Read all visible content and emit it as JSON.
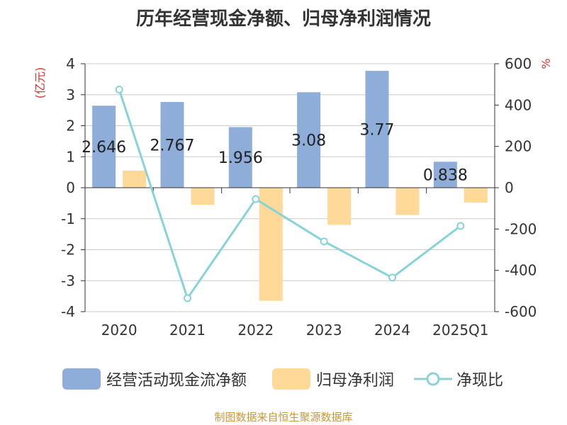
{
  "chart_data": {
    "type": "bar+line",
    "title": "历年经营现金净额、归母净利润情况",
    "categories": [
      "2020",
      "2021",
      "2022",
      "2023",
      "2024",
      "2025Q1"
    ],
    "series": [
      {
        "name": "经营活动现金流净额",
        "axis": "left",
        "type": "bar",
        "color": "#8eadd9",
        "values": [
          2.646,
          2.767,
          1.956,
          3.08,
          3.77,
          0.838
        ],
        "labels": [
          "2.646",
          "2.767",
          "1.956",
          "3.08",
          "3.77",
          "0.838"
        ]
      },
      {
        "name": "归母净利润",
        "axis": "left",
        "type": "bar",
        "color": "#ffd998",
        "values": [
          0.55,
          -0.55,
          -3.65,
          -1.2,
          -0.88,
          -0.48
        ]
      },
      {
        "name": "净现比",
        "axis": "right",
        "type": "line",
        "color": "#88d3d8",
        "values": [
          475,
          -535,
          -55,
          -260,
          -435,
          -185
        ]
      }
    ],
    "left_axis": {
      "label": "(亿元)",
      "min": -4,
      "max": 4,
      "ticks": [
        "-4",
        "-3",
        "-2",
        "-1",
        "0",
        "1",
        "2",
        "3",
        "4"
      ]
    },
    "right_axis": {
      "label": "%",
      "min": -600,
      "max": 600,
      "ticks": [
        "-600",
        "-400",
        "-200",
        "0",
        "200",
        "400",
        "600"
      ]
    }
  },
  "legend": {
    "cash_flow": "经营活动现金流净额",
    "net_profit": "归母净利润",
    "ratio": "净现比"
  },
  "source": "制图数据来自恒生聚源数据库",
  "colors": {
    "cash_flow": "#8eadd9",
    "net_profit": "#ffd998",
    "ratio": "#88d3d8",
    "axis_label": "#e03030"
  }
}
